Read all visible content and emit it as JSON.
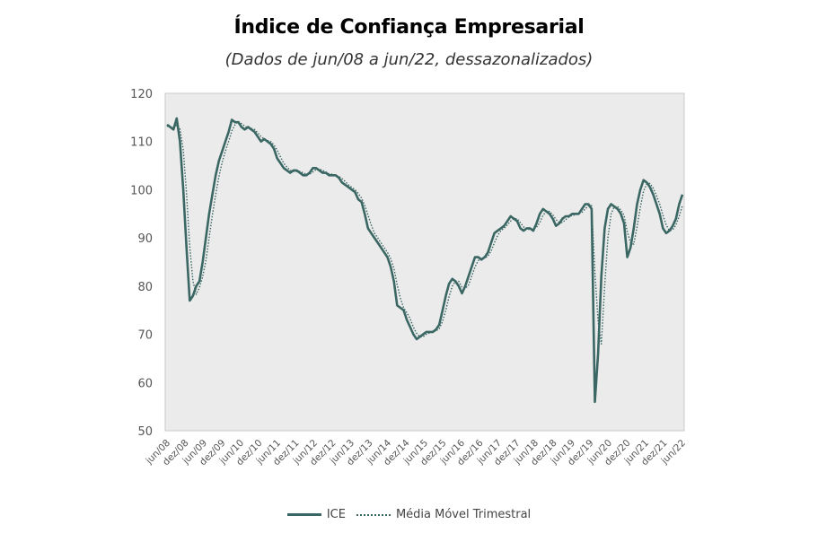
{
  "chart_data": {
    "type": "line",
    "title": "Índice de Confiança Empresarial",
    "subtitle": "(Dados de jun/08 a jun/22, dessazonalizados)",
    "xlabel": "",
    "ylabel": "",
    "ylim": [
      50,
      120
    ],
    "yticks": [
      50,
      60,
      70,
      80,
      90,
      100,
      110,
      120
    ],
    "grid": false,
    "legend_position": "bottom",
    "x_tick_labels": [
      "jun/08",
      "dez/08",
      "jun/09",
      "dez/09",
      "jun/10",
      "dez/10",
      "jun/11",
      "dez/11",
      "jun/12",
      "dez/12",
      "jun/13",
      "dez/13",
      "jun/14",
      "dez/14",
      "jun/15",
      "dez/15",
      "jun/16",
      "dez/16",
      "jun/17",
      "dez/17",
      "jun/18",
      "dez/18",
      "jun/19",
      "dez/19",
      "jun/20",
      "dez/20",
      "jun/21",
      "dez/21",
      "jun/22"
    ],
    "series": [
      {
        "name": "ICE",
        "style": "solid",
        "color": "#3a6763",
        "values": [
          113.5,
          113,
          112.5,
          114.8,
          110,
          100,
          88,
          77,
          78,
          80,
          81,
          85,
          90,
          95,
          99,
          103,
          106,
          108,
          110,
          112,
          114.5,
          114,
          114,
          113,
          112.5,
          113,
          112.5,
          112,
          111,
          110,
          110.5,
          110,
          109.5,
          108.5,
          106.5,
          105.5,
          104.5,
          104,
          103.5,
          104,
          104,
          103.5,
          103,
          103,
          103.5,
          104.5,
          104.5,
          104,
          103.5,
          103.5,
          103,
          103,
          103,
          102.5,
          101.5,
          101,
          100.5,
          100,
          99.5,
          98,
          97.5,
          95,
          92,
          91,
          90,
          89,
          88,
          87,
          86,
          84,
          81,
          76,
          75.5,
          75,
          73,
          71.5,
          70,
          69,
          69.5,
          70,
          70.5,
          70.5,
          70.5,
          71,
          72,
          75,
          78,
          80.5,
          81.5,
          81,
          80,
          78.5,
          80,
          82,
          84,
          86,
          86,
          85.5,
          86,
          87,
          89,
          91,
          91.5,
          92,
          92.5,
          93.5,
          94.5,
          94,
          93.5,
          92,
          91.5,
          92,
          92,
          91.5,
          93,
          95,
          96,
          95.5,
          95,
          94,
          92.5,
          93,
          94,
          94.5,
          94.5,
          95,
          95,
          95,
          96,
          97,
          97,
          96,
          56,
          66,
          82,
          92,
          96,
          97,
          96.5,
          96,
          95,
          93,
          86,
          88,
          92,
          97,
          100,
          102,
          101.5,
          100.5,
          99,
          97,
          95,
          92,
          91,
          91.5,
          92.5,
          94,
          97,
          99
        ]
      },
      {
        "name": "Média Móvel Trimestral",
        "style": "dotted",
        "color": "#3a6763",
        "values": [
          113.2,
          113,
          113,
          113.4,
          112.6,
          108.3,
          99.3,
          88.3,
          81,
          78.3,
          79.7,
          82,
          85.3,
          90,
          94.7,
          99,
          102.7,
          105.7,
          108,
          110,
          112.2,
          113.5,
          114.2,
          113.7,
          113.2,
          112.8,
          112.7,
          112.5,
          111.8,
          111,
          110.5,
          110.2,
          110,
          109.3,
          108.2,
          106.8,
          105.5,
          104.7,
          104,
          103.8,
          103.8,
          103.8,
          103.5,
          103.2,
          103.2,
          103.7,
          104.2,
          104.3,
          104,
          103.7,
          103.3,
          103.2,
          103,
          102.8,
          102.3,
          101.7,
          101,
          100.5,
          100,
          99.2,
          98.3,
          96.8,
          94.8,
          92.7,
          91,
          90,
          89,
          88,
          87,
          85.7,
          83.7,
          80.3,
          77.5,
          75.5,
          74.5,
          73.2,
          71.5,
          70.2,
          69.5,
          69.5,
          70,
          70.3,
          70.5,
          70.7,
          71.2,
          72.7,
          75,
          77.8,
          80,
          81,
          81,
          79.8,
          79.5,
          80.2,
          82,
          84,
          85.3,
          85.8,
          85.8,
          86.2,
          87.3,
          89,
          90.5,
          91.5,
          92,
          92.7,
          93.5,
          94,
          94,
          93.2,
          92.3,
          91.8,
          91.8,
          91.8,
          92.2,
          93.2,
          94.7,
          95.5,
          95.5,
          94.8,
          93.8,
          93.2,
          93.2,
          93.8,
          94.3,
          94.7,
          94.8,
          95,
          95.3,
          96,
          96.7,
          96.7,
          83,
          72.7,
          68,
          80,
          90,
          95,
          96.5,
          96.5,
          95.8,
          94.7,
          91.3,
          89,
          88.7,
          92.3,
          96.3,
          99.7,
          101.2,
          101.3,
          100.3,
          98.8,
          97,
          94.7,
          92.7,
          91.5,
          91.7,
          92.7,
          94.5,
          96.7
        ]
      }
    ]
  }
}
